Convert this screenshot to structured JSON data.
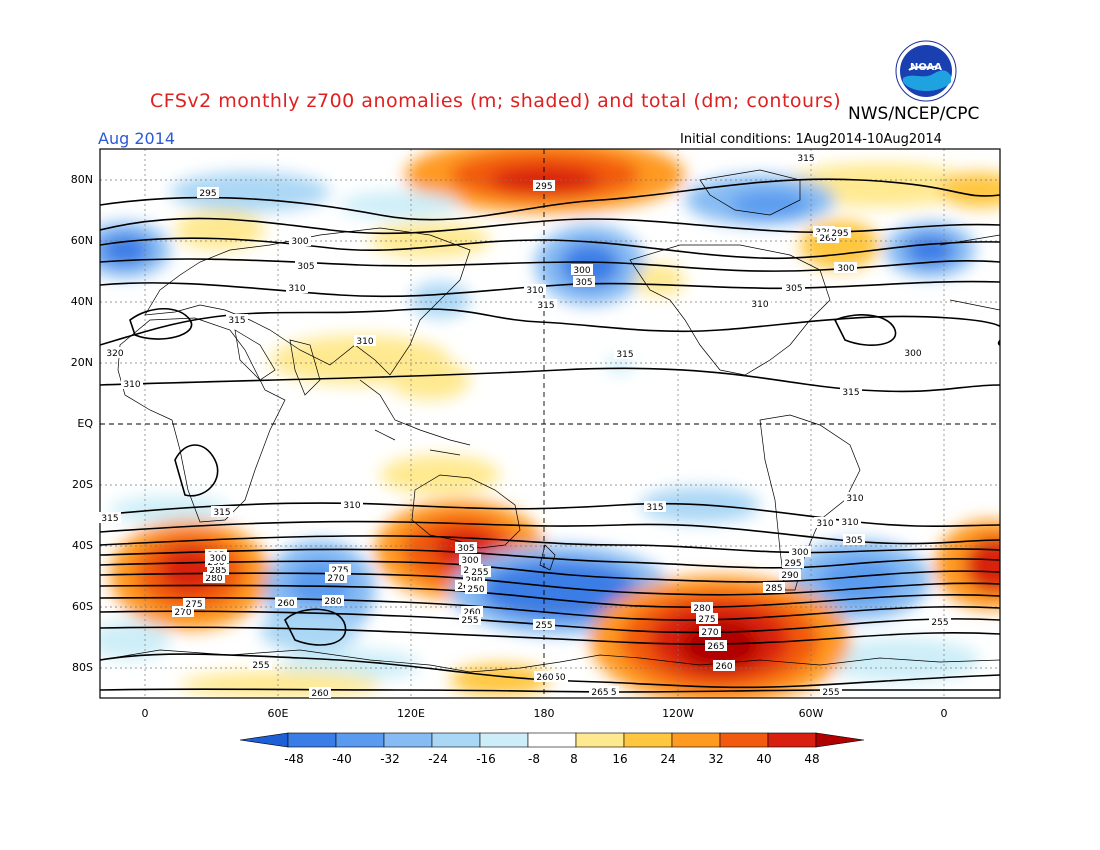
{
  "header": {
    "title": "CFSv2 monthly z700 anomalies (m; shaded) and total (dm; contours)",
    "agency": "NWS/NCEP/CPC",
    "month": "Aug 2014",
    "initial_conditions": "Initial conditions: 1Aug2014-10Aug2014",
    "logo_text": "NOAA"
  },
  "axes": {
    "lat_labels": [
      "80N",
      "60N",
      "40N",
      "20N",
      "EQ",
      "20S",
      "40S",
      "60S",
      "80S"
    ],
    "lon_labels": [
      "0",
      "60E",
      "120E",
      "180",
      "120W",
      "60W",
      "0"
    ]
  },
  "colorbar": {
    "labels": [
      "-48",
      "-40",
      "-32",
      "-24",
      "-16",
      "-8",
      "8",
      "16",
      "24",
      "32",
      "40",
      "48"
    ],
    "colors": [
      "#1f5fd6",
      "#3a7de6",
      "#5a9bef",
      "#86bbf3",
      "#aad7f5",
      "#cdeef8",
      "#ffffff",
      "#ffe990",
      "#ffc640",
      "#ff9a20",
      "#f25a10",
      "#d92010",
      "#b00000"
    ]
  },
  "contour_labels": [
    "290",
    "295",
    "295",
    "300",
    "305",
    "310",
    "315",
    "320",
    "310",
    "300",
    "305",
    "310",
    "315",
    "315",
    "300",
    "305",
    "310",
    "315",
    "320",
    "315",
    "310",
    "315",
    "315",
    "310",
    "315",
    "310",
    "300",
    "295",
    "290",
    "285",
    "280",
    "275",
    "270",
    "265",
    "260",
    "255",
    "250",
    "255",
    "260",
    "265",
    "270",
    "275",
    "280",
    "285",
    "290",
    "295",
    "300",
    "305",
    "310",
    "255",
    "260",
    "280",
    "275",
    "270",
    "265",
    "260",
    "255",
    "300",
    "295",
    "290",
    "285",
    "305",
    "310",
    "255",
    "260",
    "265",
    "255",
    "250",
    "255",
    "260",
    "295",
    "300",
    "305",
    "310",
    "315"
  ]
}
